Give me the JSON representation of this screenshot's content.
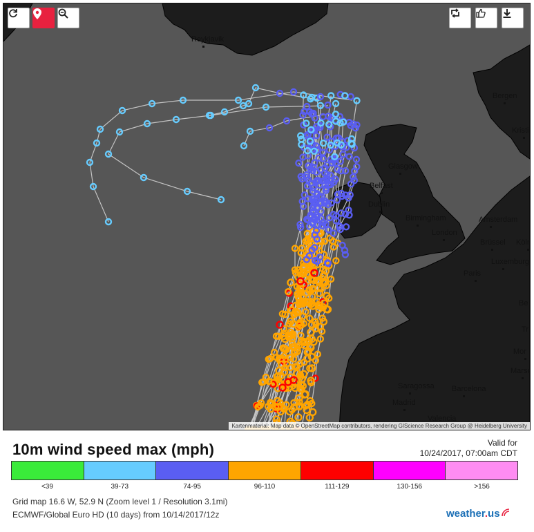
{
  "toolbar": {
    "refresh_icon": "refresh-icon",
    "location_icon": "location-pin-icon",
    "zoom_icon": "zoom-out-icon",
    "repost_icon": "repost-icon",
    "like_icon": "thumbs-up-icon",
    "download_icon": "download-icon",
    "active_color": "#e8213f"
  },
  "map": {
    "cities": [
      {
        "name": "Reykjavik"
      },
      {
        "name": "Bergen"
      },
      {
        "name": "Kristi"
      },
      {
        "name": "Glasgow"
      },
      {
        "name": "Belfast"
      },
      {
        "name": "Dublin"
      },
      {
        "name": "Birmingham"
      },
      {
        "name": "London"
      },
      {
        "name": "Amsterdam"
      },
      {
        "name": "Brüssel"
      },
      {
        "name": "Köln"
      },
      {
        "name": "Luxemburg"
      },
      {
        "name": "Paris"
      },
      {
        "name": "Be"
      },
      {
        "name": "Tr"
      },
      {
        "name": "Mor"
      },
      {
        "name": "Marse"
      },
      {
        "name": "Saragossa"
      },
      {
        "name": "Barcelona"
      },
      {
        "name": "Madrid"
      },
      {
        "name": "Valencia"
      }
    ],
    "attribution": "Kartenmaterial: Map data © OpenStreetMap contributors, rendering GIScience Research Group @ Heidelberg University"
  },
  "header": {
    "title": "10m wind speed max (mph)",
    "valid_label": "Valid for",
    "valid_time": "10/24/2017, 07:00am CDT"
  },
  "legend": [
    {
      "label": "<39",
      "color": "#3aeb3a"
    },
    {
      "label": "39-73",
      "color": "#66ccff"
    },
    {
      "label": "74-95",
      "color": "#5a5ef2"
    },
    {
      "label": "96-110",
      "color": "#ffa500"
    },
    {
      "label": "111-129",
      "color": "#ff0000"
    },
    {
      "label": "130-156",
      "color": "#ff00ff"
    },
    {
      "label": ">156",
      "color": "#ff8cf2"
    }
  ],
  "footer": {
    "grid": "Grid map 16.6 W, 52.9 N (Zoom level 1 / Resolution 3.1mi)",
    "model": "ECMWF/Global Euro HD (10 days) from 10/14/2017/12z",
    "logo_text": "weather",
    "logo_dot": ".",
    "logo_tld": "us"
  }
}
